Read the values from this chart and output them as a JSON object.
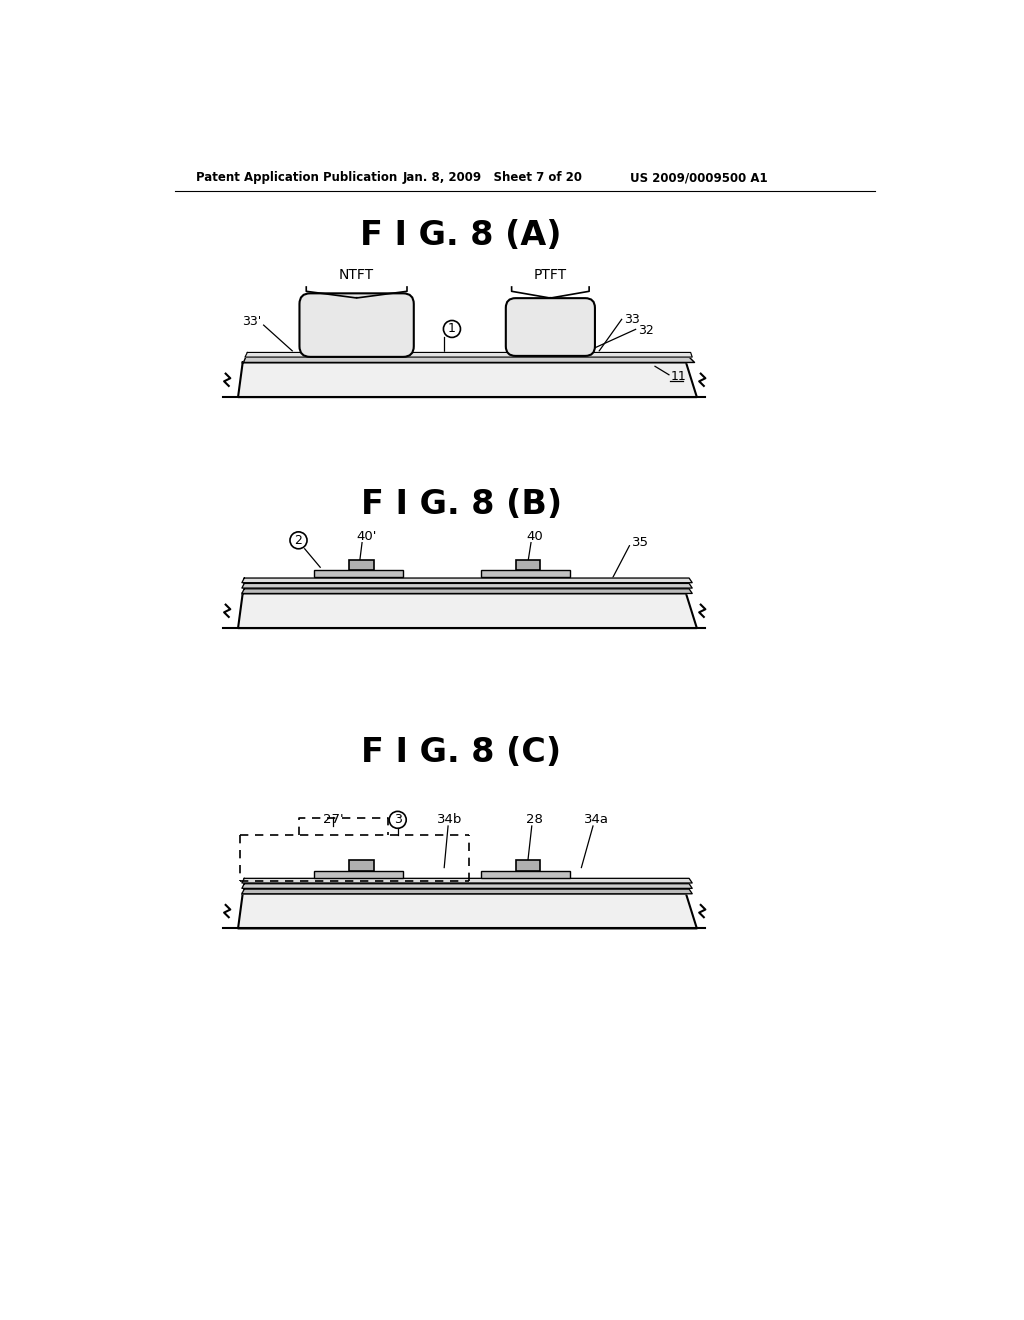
{
  "bg_color": "#ffffff",
  "header_left": "Patent Application Publication",
  "header_mid": "Jan. 8, 2009   Sheet 7 of 20",
  "header_right": "US 2009/0009500 A1",
  "fig_A_title": "F I G. 8 (A)",
  "fig_B_title": "F I G. 8 (B)",
  "fig_C_title": "F I G. 8 (C)",
  "line_color": "#000000",
  "substrate_fill": "#f0f0f0",
  "layer_fill": "#e0e0e0",
  "pad_fill": "#d8d8d8",
  "blob_fill": "#e8e8e8"
}
